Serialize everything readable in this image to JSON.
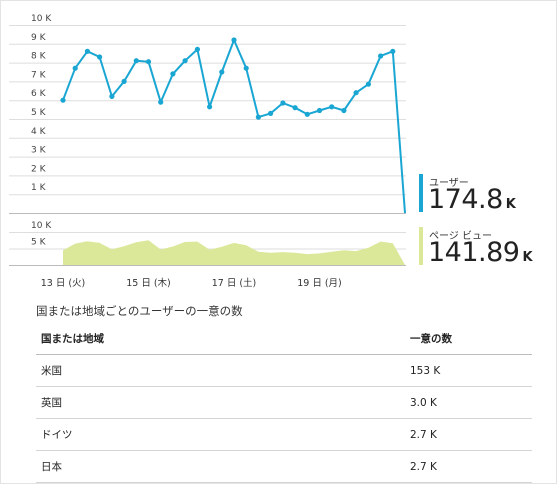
{
  "chart_data": [
    {
      "type": "line",
      "series": [
        {
          "name": "ユーザー",
          "values": [
            6000,
            7700,
            8600,
            8300,
            6200,
            7000,
            8100,
            8050,
            5900,
            7400,
            8100,
            8700,
            5650,
            7500,
            9200,
            7700,
            5100,
            5300,
            5850,
            5600,
            5250,
            5450,
            5650,
            5450,
            6400,
            6850,
            8350,
            8600,
            0
          ]
        }
      ],
      "y_ticks": [
        "10 K",
        "9 K",
        "8 K",
        "7 K",
        "6 K",
        "5 K",
        "4 K",
        "3 K",
        "2 K",
        "1 K"
      ],
      "ylim": [
        0,
        10000
      ],
      "color": "#1aa6d3",
      "grid": true
    },
    {
      "type": "area",
      "series": [
        {
          "name": "ページ ビュー",
          "values": [
            4500,
            6500,
            7200,
            6700,
            4800,
            5700,
            6900,
            7500,
            4700,
            5600,
            7000,
            7100,
            4600,
            5500,
            6700,
            6000,
            4000,
            3700,
            3900,
            3700,
            3300,
            3500,
            4000,
            4500,
            4200,
            5200,
            7100,
            6600,
            0
          ]
        }
      ],
      "y_ticks": [
        "10 K",
        "5 K"
      ],
      "ylim": [
        0,
        10000
      ],
      "x_tick_labels": [
        "13 日 (火)",
        "15 日 (木)",
        "17 日 (土)",
        "19 日 (月)"
      ],
      "color": "#dbe89a",
      "grid": true
    }
  ],
  "kpis": [
    {
      "label": "ユーザー",
      "value": "174.8",
      "unit": "K",
      "color": "#1aa6d3"
    },
    {
      "label": "ページ ビュー",
      "value": "141.89",
      "unit": "K",
      "color": "#dbe89a"
    }
  ],
  "table": {
    "title": "国または地域ごとのユーザーの一意の数",
    "headers": [
      "国または地域",
      "一意の数"
    ],
    "rows": [
      [
        "米国",
        "153 K"
      ],
      [
        "英国",
        "3.0 K"
      ],
      [
        "ドイツ",
        "2.7 K"
      ],
      [
        "日本",
        "2.7 K"
      ]
    ]
  }
}
